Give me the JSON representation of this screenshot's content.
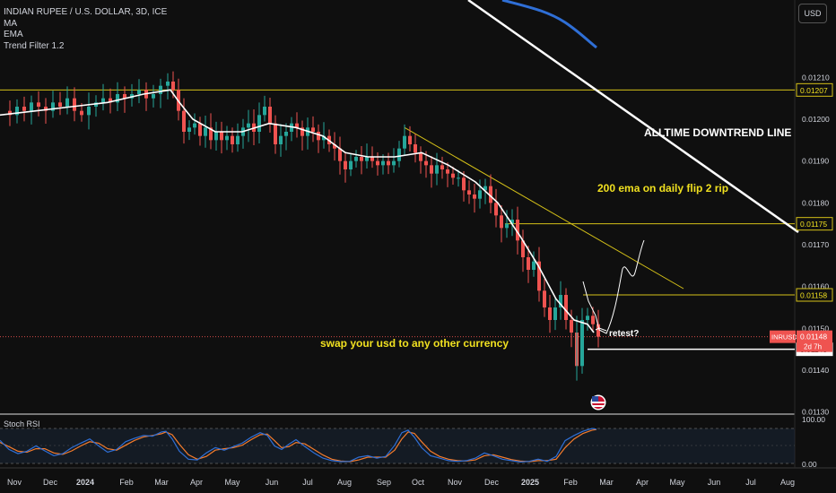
{
  "header": {
    "symbol_title": "INDIAN RUPEE / U.S. DOLLAR, 3D, ICE",
    "indicators": [
      "MA",
      "EMA",
      "Trend Filter 1.2"
    ],
    "currency_button": "USD"
  },
  "chart_data": {
    "type": "candlestick",
    "symbol": "INRUSD",
    "timeframe": "3D",
    "price_axis_ticks": [
      "0.01210",
      "0.01200",
      "0.01190",
      "0.01180",
      "0.01170",
      "0.01160",
      "0.01150",
      "0.01140",
      "0.01130"
    ],
    "price_axis_tick_values": [
      0.0121,
      0.012,
      0.0119,
      0.0118,
      0.0117,
      0.0116,
      0.0115,
      0.0114,
      0.0113
    ],
    "ylim": [
      0.011295,
      0.012285
    ],
    "time_axis_labels": [
      "Nov",
      "Dec",
      "2024",
      "Feb",
      "Mar",
      "Apr",
      "May",
      "Jun",
      "Jul",
      "Aug",
      "Sep",
      "Oct",
      "Nov",
      "Dec",
      "2025",
      "Feb",
      "Mar",
      "Apr",
      "May",
      "Jun",
      "Jul",
      "Aug"
    ],
    "time_axis_bold": [
      "2024",
      "2025"
    ],
    "close_path": [
      [
        0,
        0.01202
      ],
      [
        8,
        0.01201
      ],
      [
        16,
        0.01203
      ],
      [
        24,
        0.01202
      ],
      [
        32,
        0.01204
      ],
      [
        40,
        0.01203
      ],
      [
        48,
        0.01202
      ],
      [
        56,
        0.01204
      ],
      [
        64,
        0.01203
      ],
      [
        72,
        0.01205
      ],
      [
        80,
        0.01202
      ],
      [
        88,
        0.01201
      ],
      [
        96,
        0.01203
      ],
      [
        104,
        0.01204
      ],
      [
        112,
        0.01205
      ],
      [
        120,
        0.01204
      ],
      [
        128,
        0.01206
      ],
      [
        136,
        0.01205
      ],
      [
        144,
        0.01206
      ],
      [
        152,
        0.01207
      ],
      [
        160,
        0.01205
      ],
      [
        168,
        0.01206
      ],
      [
        176,
        0.01208
      ],
      [
        184,
        0.01209
      ],
      [
        190,
        0.01207
      ],
      [
        196,
        0.01202
      ],
      [
        202,
        0.01197
      ],
      [
        208,
        0.01198
      ],
      [
        214,
        0.01199
      ],
      [
        220,
        0.01196
      ],
      [
        226,
        0.01198
      ],
      [
        232,
        0.01195
      ],
      [
        238,
        0.01197
      ],
      [
        244,
        0.01195
      ],
      [
        250,
        0.01196
      ],
      [
        256,
        0.01194
      ],
      [
        262,
        0.01196
      ],
      [
        268,
        0.01198
      ],
      [
        274,
        0.01199
      ],
      [
        280,
        0.01197
      ],
      [
        286,
        0.01201
      ],
      [
        292,
        0.01203
      ],
      [
        298,
        0.01199
      ],
      [
        304,
        0.01194
      ],
      [
        310,
        0.01196
      ],
      [
        316,
        0.01197
      ],
      [
        322,
        0.01199
      ],
      [
        328,
        0.01198
      ],
      [
        334,
        0.01196
      ],
      [
        340,
        0.01198
      ],
      [
        346,
        0.01197
      ],
      [
        352,
        0.01195
      ],
      [
        358,
        0.01196
      ],
      [
        364,
        0.01194
      ],
      [
        370,
        0.01193
      ],
      [
        376,
        0.0119
      ],
      [
        382,
        0.01188
      ],
      [
        388,
        0.0119
      ],
      [
        394,
        0.01191
      ],
      [
        400,
        0.0119
      ],
      [
        406,
        0.01191
      ],
      [
        412,
        0.0119
      ],
      [
        418,
        0.01189
      ],
      [
        424,
        0.0119
      ],
      [
        430,
        0.01189
      ],
      [
        436,
        0.0119
      ],
      [
        442,
        0.01193
      ],
      [
        448,
        0.01196
      ],
      [
        454,
        0.01194
      ],
      [
        460,
        0.01192
      ],
      [
        466,
        0.0119
      ],
      [
        472,
        0.01189
      ],
      [
        478,
        0.01187
      ],
      [
        484,
        0.01189
      ],
      [
        490,
        0.01188
      ],
      [
        496,
        0.01187
      ],
      [
        502,
        0.01186
      ],
      [
        508,
        0.01186
      ],
      [
        514,
        0.01183
      ],
      [
        520,
        0.01182
      ],
      [
        526,
        0.01181
      ],
      [
        532,
        0.01183
      ],
      [
        538,
        0.01184
      ],
      [
        544,
        0.0118
      ],
      [
        550,
        0.01177
      ],
      [
        556,
        0.01174
      ],
      [
        562,
        0.01175
      ],
      [
        568,
        0.01176
      ],
      [
        574,
        0.01171
      ],
      [
        580,
        0.01167
      ],
      [
        586,
        0.01164
      ],
      [
        592,
        0.01166
      ],
      [
        598,
        0.01159
      ],
      [
        604,
        0.01155
      ],
      [
        610,
        0.01152
      ],
      [
        616,
        0.01155
      ],
      [
        622,
        0.01158
      ],
      [
        628,
        0.01152
      ],
      [
        634,
        0.01149
      ],
      [
        640,
        0.01141
      ],
      [
        646,
        0.01152
      ],
      [
        652,
        0.01153
      ],
      [
        658,
        0.01151
      ],
      [
        664,
        0.01148
      ]
    ],
    "ema_path": [
      [
        0,
        0.01201
      ],
      [
        40,
        0.01202
      ],
      [
        80,
        0.01203
      ],
      [
        120,
        0.01204
      ],
      [
        160,
        0.01206
      ],
      [
        190,
        0.01207
      ],
      [
        200,
        0.01204
      ],
      [
        215,
        0.012
      ],
      [
        240,
        0.01197
      ],
      [
        270,
        0.01197
      ],
      [
        300,
        0.01199
      ],
      [
        330,
        0.01198
      ],
      [
        360,
        0.01196
      ],
      [
        385,
        0.01192
      ],
      [
        410,
        0.01191
      ],
      [
        440,
        0.01191
      ],
      [
        470,
        0.01192
      ],
      [
        500,
        0.01189
      ],
      [
        530,
        0.01185
      ],
      [
        555,
        0.0118
      ],
      [
        580,
        0.01172
      ],
      [
        600,
        0.01165
      ],
      [
        620,
        0.01157
      ],
      [
        640,
        0.01152
      ],
      [
        655,
        0.01151
      ],
      [
        662,
        0.01149
      ]
    ],
    "stoch_rsi": {
      "levels": [
        "100.00",
        "0.00"
      ],
      "k_path": [
        [
          0,
          66
        ],
        [
          10,
          40
        ],
        [
          20,
          28
        ],
        [
          30,
          35
        ],
        [
          40,
          50
        ],
        [
          50,
          36
        ],
        [
          60,
          22
        ],
        [
          70,
          28
        ],
        [
          80,
          45
        ],
        [
          90,
          58
        ],
        [
          100,
          70
        ],
        [
          110,
          50
        ],
        [
          120,
          32
        ],
        [
          130,
          40
        ],
        [
          140,
          62
        ],
        [
          150,
          72
        ],
        [
          160,
          80
        ],
        [
          170,
          78
        ],
        [
          180,
          90
        ],
        [
          185,
          92
        ],
        [
          192,
          70
        ],
        [
          200,
          35
        ],
        [
          210,
          12
        ],
        [
          220,
          10
        ],
        [
          230,
          30
        ],
        [
          240,
          45
        ],
        [
          250,
          38
        ],
        [
          260,
          48
        ],
        [
          270,
          58
        ],
        [
          280,
          75
        ],
        [
          290,
          88
        ],
        [
          298,
          80
        ],
        [
          306,
          50
        ],
        [
          314,
          40
        ],
        [
          322,
          55
        ],
        [
          330,
          68
        ],
        [
          340,
          48
        ],
        [
          350,
          30
        ],
        [
          360,
          15
        ],
        [
          370,
          8
        ],
        [
          380,
          5
        ],
        [
          390,
          6
        ],
        [
          400,
          18
        ],
        [
          410,
          22
        ],
        [
          420,
          15
        ],
        [
          430,
          20
        ],
        [
          440,
          52
        ],
        [
          448,
          88
        ],
        [
          455,
          95
        ],
        [
          462,
          75
        ],
        [
          470,
          45
        ],
        [
          480,
          22
        ],
        [
          490,
          15
        ],
        [
          500,
          8
        ],
        [
          510,
          6
        ],
        [
          520,
          8
        ],
        [
          530,
          15
        ],
        [
          540,
          30
        ],
        [
          550,
          22
        ],
        [
          560,
          12
        ],
        [
          570,
          8
        ],
        [
          580,
          4
        ],
        [
          590,
          6
        ],
        [
          600,
          12
        ],
        [
          610,
          6
        ],
        [
          620,
          20
        ],
        [
          630,
          65
        ],
        [
          640,
          80
        ],
        [
          650,
          92
        ],
        [
          660,
          100
        ],
        [
          665,
          98
        ]
      ],
      "d_path": [
        [
          0,
          60
        ],
        [
          10,
          48
        ],
        [
          20,
          35
        ],
        [
          30,
          32
        ],
        [
          40,
          42
        ],
        [
          50,
          42
        ],
        [
          60,
          30
        ],
        [
          70,
          26
        ],
        [
          80,
          36
        ],
        [
          90,
          50
        ],
        [
          100,
          62
        ],
        [
          110,
          58
        ],
        [
          120,
          42
        ],
        [
          130,
          38
        ],
        [
          140,
          52
        ],
        [
          150,
          66
        ],
        [
          160,
          76
        ],
        [
          170,
          80
        ],
        [
          180,
          85
        ],
        [
          185,
          90
        ],
        [
          192,
          82
        ],
        [
          200,
          55
        ],
        [
          210,
          25
        ],
        [
          220,
          12
        ],
        [
          230,
          20
        ],
        [
          240,
          38
        ],
        [
          250,
          42
        ],
        [
          260,
          45
        ],
        [
          270,
          52
        ],
        [
          280,
          68
        ],
        [
          290,
          82
        ],
        [
          298,
          84
        ],
        [
          306,
          65
        ],
        [
          314,
          45
        ],
        [
          322,
          48
        ],
        [
          330,
          60
        ],
        [
          340,
          56
        ],
        [
          350,
          40
        ],
        [
          360,
          24
        ],
        [
          370,
          12
        ],
        [
          380,
          7
        ],
        [
          390,
          5
        ],
        [
          400,
          10
        ],
        [
          410,
          18
        ],
        [
          420,
          18
        ],
        [
          430,
          18
        ],
        [
          440,
          38
        ],
        [
          448,
          70
        ],
        [
          455,
          90
        ],
        [
          462,
          86
        ],
        [
          470,
          62
        ],
        [
          480,
          35
        ],
        [
          490,
          20
        ],
        [
          500,
          12
        ],
        [
          510,
          8
        ],
        [
          520,
          7
        ],
        [
          530,
          10
        ],
        [
          540,
          22
        ],
        [
          550,
          25
        ],
        [
          560,
          18
        ],
        [
          570,
          11
        ],
        [
          580,
          7
        ],
        [
          590,
          5
        ],
        [
          600,
          8
        ],
        [
          610,
          8
        ],
        [
          620,
          12
        ],
        [
          630,
          45
        ],
        [
          640,
          70
        ],
        [
          650,
          86
        ],
        [
          660,
          95
        ],
        [
          665,
          97
        ]
      ]
    },
    "horizontal_levels": [
      {
        "label": "0.01207",
        "value": 0.01207,
        "color": "#d4c018"
      },
      {
        "label": "0.01175",
        "value": 0.01175,
        "color": "#d4c018"
      },
      {
        "label": "0.01158",
        "value": 0.01158,
        "color": "#d4c018"
      },
      {
        "label": "0.01145",
        "value": 0.01145,
        "color": "#ffffff"
      }
    ],
    "last_price": {
      "symbol": "INRUSD",
      "value": "0.01148",
      "countdown": "2d 7h"
    },
    "annotations": [
      {
        "text": "ALLTIME DOWNTREND LINE",
        "color": "#ffffff"
      },
      {
        "text": "200 ema on daily flip 2 rip",
        "color": "#f0e020"
      },
      {
        "text": "swap your usd to any other currency",
        "color": "#f0e020"
      },
      {
        "text": "retest?",
        "color": "#ffffff"
      }
    ],
    "colors": {
      "up": "#26a69a",
      "down": "#ef5350",
      "ema": "#ffffff",
      "ma": "#2f6fd6",
      "stoch_k": "#2f6fd6",
      "stoch_d": "#f57c2c",
      "level_yellow": "#d4c018",
      "background": "#0f0f0f"
    }
  }
}
